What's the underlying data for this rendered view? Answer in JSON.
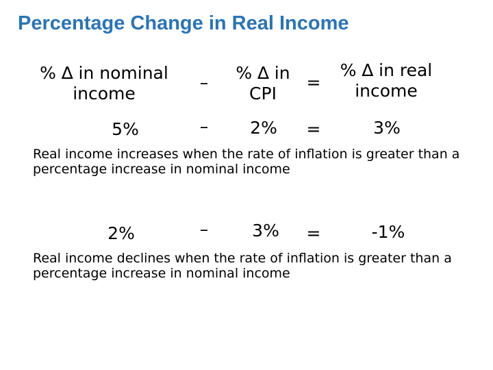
{
  "title": "Percentage Change in Real Income",
  "equation_header": {
    "term1": "% ∆ in nominal income",
    "op1": "–",
    "term2": "% ∆ in CPI",
    "op2": "=",
    "term3": "% ∆ in real income"
  },
  "examples": [
    {
      "nominal": "5%",
      "op1": "–",
      "cpi": "2%",
      "op2": "=",
      "real": "3%",
      "note": "Real income increases when the rate of inflation is greater than a percentage increase in nominal income"
    },
    {
      "nominal": "2%",
      "op1": "–",
      "cpi": "3%",
      "op2": "=",
      "real": "-1%",
      "note": "Real income declines when the rate of inflation is greater than a percentage increase in nominal income"
    }
  ]
}
